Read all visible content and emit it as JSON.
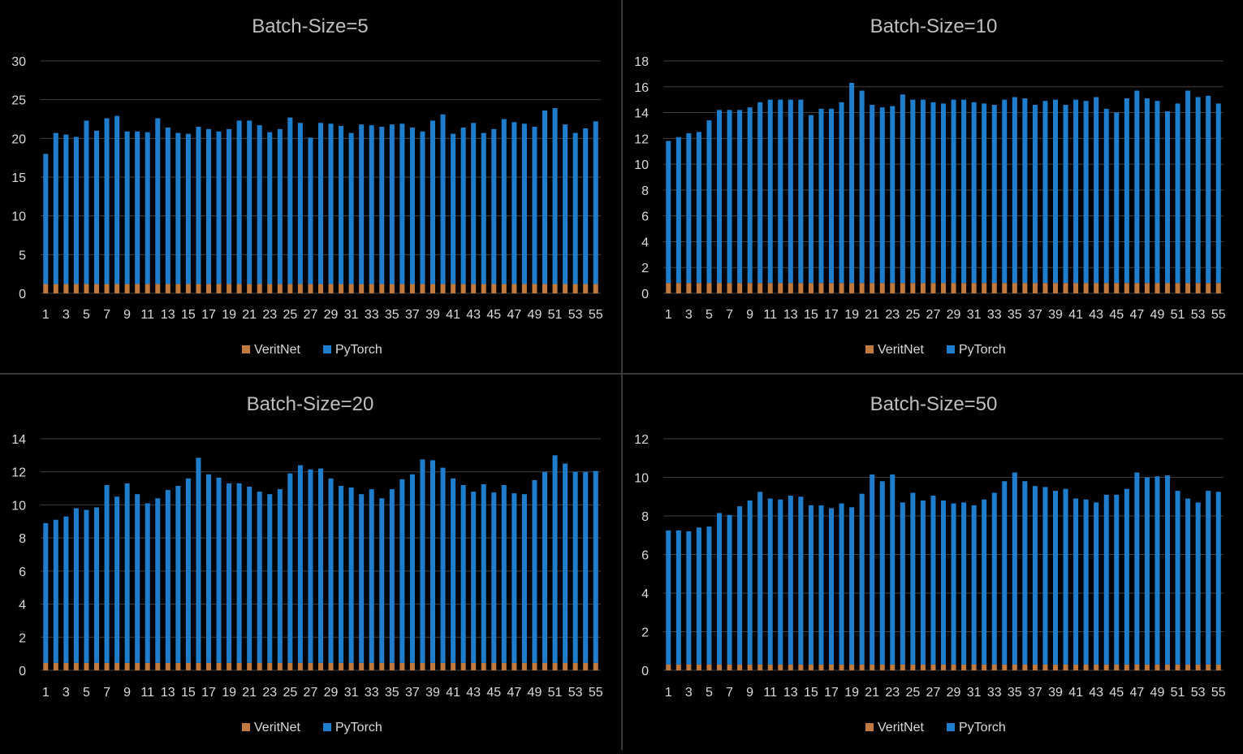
{
  "colors": {
    "veritnet": "#c07a3e",
    "pytorch": "#1f7ecb",
    "background": "#000000",
    "grid": "#404040",
    "text": "#d9d9d9",
    "title": "#bfbfbf"
  },
  "legend": [
    "VeritNet",
    "PyTorch"
  ],
  "chart_data": [
    {
      "type": "bar",
      "stacked": true,
      "title": "Batch-Size=5",
      "ylim": [
        0,
        30
      ],
      "yticks": [
        0,
        5,
        10,
        15,
        20,
        25,
        30
      ],
      "x": [
        1,
        2,
        3,
        4,
        5,
        6,
        7,
        8,
        9,
        10,
        11,
        12,
        13,
        14,
        15,
        16,
        17,
        18,
        19,
        20,
        21,
        22,
        23,
        24,
        25,
        26,
        27,
        28,
        29,
        30,
        31,
        32,
        33,
        34,
        35,
        36,
        37,
        38,
        39,
        40,
        41,
        42,
        43,
        44,
        45,
        46,
        47,
        48,
        49,
        50,
        51,
        52,
        53,
        54,
        55
      ],
      "xtick_labels": [
        "1",
        "3",
        "5",
        "7",
        "9",
        "11",
        "13",
        "15",
        "17",
        "19",
        "21",
        "23",
        "25",
        "27",
        "29",
        "31",
        "33",
        "35",
        "37",
        "39",
        "41",
        "43",
        "45",
        "47",
        "49",
        "51",
        "53",
        "55"
      ],
      "legend_position": "bottom",
      "grid": true,
      "series": [
        {
          "name": "VeritNet",
          "values": [
            1.2,
            1.2,
            1.2,
            1.2,
            1.2,
            1.2,
            1.2,
            1.2,
            1.2,
            1.2,
            1.2,
            1.2,
            1.2,
            1.2,
            1.2,
            1.2,
            1.2,
            1.2,
            1.2,
            1.2,
            1.2,
            1.2,
            1.2,
            1.2,
            1.2,
            1.2,
            1.2,
            1.2,
            1.2,
            1.2,
            1.2,
            1.2,
            1.2,
            1.2,
            1.2,
            1.2,
            1.2,
            1.2,
            1.2,
            1.2,
            1.2,
            1.2,
            1.2,
            1.2,
            1.2,
            1.2,
            1.2,
            1.2,
            1.2,
            1.2,
            1.2,
            1.2,
            1.2,
            1.2,
            1.2
          ]
        },
        {
          "name": "PyTorch",
          "values": [
            16.8,
            19.5,
            19.3,
            19.0,
            21.1,
            19.8,
            21.4,
            21.7,
            19.7,
            19.7,
            19.6,
            21.4,
            20.2,
            19.5,
            19.4,
            20.3,
            20.0,
            19.7,
            20.0,
            21.1,
            21.1,
            20.5,
            19.6,
            20.0,
            21.5,
            20.8,
            18.9,
            20.8,
            20.7,
            20.4,
            19.5,
            20.6,
            20.5,
            20.3,
            20.6,
            20.7,
            20.2,
            19.7,
            21.1,
            21.9,
            19.4,
            20.2,
            20.8,
            19.5,
            20.0,
            21.3,
            20.9,
            20.7,
            20.3,
            22.4,
            22.7,
            20.6,
            19.5,
            20.1,
            21.0
          ]
        }
      ]
    },
    {
      "type": "bar",
      "stacked": true,
      "title": "Batch-Size=10",
      "ylim": [
        0,
        18
      ],
      "yticks": [
        0,
        2,
        4,
        6,
        8,
        10,
        12,
        14,
        16,
        18
      ],
      "x": [
        1,
        2,
        3,
        4,
        5,
        6,
        7,
        8,
        9,
        10,
        11,
        12,
        13,
        14,
        15,
        16,
        17,
        18,
        19,
        20,
        21,
        22,
        23,
        24,
        25,
        26,
        27,
        28,
        29,
        30,
        31,
        32,
        33,
        34,
        35,
        36,
        37,
        38,
        39,
        40,
        41,
        42,
        43,
        44,
        45,
        46,
        47,
        48,
        49,
        50,
        51,
        52,
        53,
        54,
        55
      ],
      "xtick_labels": [
        "1",
        "3",
        "5",
        "7",
        "9",
        "11",
        "13",
        "15",
        "17",
        "19",
        "21",
        "23",
        "25",
        "27",
        "29",
        "31",
        "33",
        "35",
        "37",
        "39",
        "41",
        "43",
        "45",
        "47",
        "49",
        "51",
        "53",
        "55"
      ],
      "legend_position": "bottom",
      "grid": true,
      "series": [
        {
          "name": "VeritNet",
          "values": [
            0.8,
            0.8,
            0.8,
            0.8,
            0.8,
            0.8,
            0.8,
            0.8,
            0.8,
            0.8,
            0.8,
            0.8,
            0.8,
            0.8,
            0.8,
            0.8,
            0.8,
            0.8,
            0.8,
            0.8,
            0.8,
            0.8,
            0.8,
            0.8,
            0.8,
            0.8,
            0.8,
            0.8,
            0.8,
            0.8,
            0.8,
            0.8,
            0.8,
            0.8,
            0.8,
            0.8,
            0.8,
            0.8,
            0.8,
            0.8,
            0.8,
            0.8,
            0.8,
            0.8,
            0.8,
            0.8,
            0.8,
            0.8,
            0.8,
            0.8,
            0.8,
            0.8,
            0.8,
            0.8,
            0.8
          ]
        },
        {
          "name": "PyTorch",
          "values": [
            11.0,
            11.3,
            11.6,
            11.7,
            12.6,
            13.4,
            13.4,
            13.4,
            13.6,
            14.0,
            14.2,
            14.2,
            14.2,
            14.2,
            13.0,
            13.5,
            13.5,
            14.0,
            15.5,
            14.9,
            13.8,
            13.6,
            13.7,
            14.6,
            14.2,
            14.2,
            14.0,
            13.9,
            14.2,
            14.2,
            14.0,
            13.9,
            13.8,
            14.2,
            14.4,
            14.3,
            13.8,
            14.1,
            14.2,
            13.8,
            14.2,
            14.1,
            14.4,
            13.5,
            13.2,
            14.3,
            14.9,
            14.3,
            14.1,
            13.3,
            13.9,
            14.9,
            14.4,
            14.5,
            13.9
          ]
        }
      ]
    },
    {
      "type": "bar",
      "stacked": true,
      "title": "Batch-Size=20",
      "ylim": [
        0,
        14
      ],
      "yticks": [
        0,
        2,
        4,
        6,
        8,
        10,
        12,
        14
      ],
      "x": [
        1,
        2,
        3,
        4,
        5,
        6,
        7,
        8,
        9,
        10,
        11,
        12,
        13,
        14,
        15,
        16,
        17,
        18,
        19,
        20,
        21,
        22,
        23,
        24,
        25,
        26,
        27,
        28,
        29,
        30,
        31,
        32,
        33,
        34,
        35,
        36,
        37,
        38,
        39,
        40,
        41,
        42,
        43,
        44,
        45,
        46,
        47,
        48,
        49,
        50,
        51,
        52,
        53,
        54,
        55
      ],
      "xtick_labels": [
        "1",
        "3",
        "5",
        "7",
        "9",
        "11",
        "13",
        "15",
        "17",
        "19",
        "21",
        "23",
        "25",
        "27",
        "29",
        "31",
        "33",
        "35",
        "37",
        "39",
        "41",
        "43",
        "45",
        "47",
        "49",
        "51",
        "53",
        "55"
      ],
      "legend_position": "bottom",
      "grid": true,
      "series": [
        {
          "name": "VeritNet",
          "values": [
            0.45,
            0.45,
            0.45,
            0.45,
            0.45,
            0.45,
            0.45,
            0.45,
            0.45,
            0.45,
            0.45,
            0.45,
            0.45,
            0.45,
            0.45,
            0.45,
            0.45,
            0.45,
            0.45,
            0.45,
            0.45,
            0.45,
            0.45,
            0.45,
            0.45,
            0.45,
            0.45,
            0.45,
            0.45,
            0.45,
            0.45,
            0.45,
            0.45,
            0.45,
            0.45,
            0.45,
            0.45,
            0.45,
            0.45,
            0.45,
            0.45,
            0.45,
            0.45,
            0.45,
            0.45,
            0.45,
            0.45,
            0.45,
            0.45,
            0.45,
            0.45,
            0.45,
            0.45,
            0.45,
            0.45
          ]
        },
        {
          "name": "PyTorch",
          "values": [
            8.45,
            8.65,
            8.85,
            9.35,
            9.25,
            9.4,
            10.75,
            10.05,
            10.85,
            10.2,
            9.65,
            9.95,
            10.45,
            10.7,
            11.15,
            12.4,
            11.4,
            11.2,
            10.85,
            10.85,
            10.65,
            10.35,
            10.2,
            10.5,
            11.45,
            11.95,
            11.7,
            11.75,
            11.15,
            10.7,
            10.6,
            10.2,
            10.5,
            9.95,
            10.5,
            11.1,
            11.4,
            12.3,
            12.25,
            11.8,
            11.15,
            10.75,
            10.35,
            10.8,
            10.3,
            10.75,
            10.25,
            10.2,
            11.05,
            11.55,
            12.55,
            12.05,
            11.55,
            11.55,
            11.6
          ]
        }
      ]
    },
    {
      "type": "bar",
      "stacked": true,
      "title": "Batch-Size=50",
      "ylim": [
        0,
        12
      ],
      "yticks": [
        0,
        2,
        4,
        6,
        8,
        10,
        12
      ],
      "x": [
        1,
        2,
        3,
        4,
        5,
        6,
        7,
        8,
        9,
        10,
        11,
        12,
        13,
        14,
        15,
        16,
        17,
        18,
        19,
        20,
        21,
        22,
        23,
        24,
        25,
        26,
        27,
        28,
        29,
        30,
        31,
        32,
        33,
        34,
        35,
        36,
        37,
        38,
        39,
        40,
        41,
        42,
        43,
        44,
        45,
        46,
        47,
        48,
        49,
        50,
        51,
        52,
        53,
        54,
        55
      ],
      "xtick_labels": [
        "1",
        "3",
        "5",
        "7",
        "9",
        "11",
        "13",
        "15",
        "17",
        "19",
        "21",
        "23",
        "25",
        "27",
        "29",
        "31",
        "33",
        "35",
        "37",
        "39",
        "41",
        "43",
        "45",
        "47",
        "49",
        "51",
        "53",
        "55"
      ],
      "legend_position": "bottom",
      "grid": true,
      "series": [
        {
          "name": "VeritNet",
          "values": [
            0.3,
            0.3,
            0.3,
            0.3,
            0.3,
            0.3,
            0.3,
            0.3,
            0.3,
            0.3,
            0.3,
            0.3,
            0.3,
            0.3,
            0.3,
            0.3,
            0.3,
            0.3,
            0.3,
            0.3,
            0.3,
            0.3,
            0.3,
            0.3,
            0.3,
            0.3,
            0.3,
            0.3,
            0.3,
            0.3,
            0.3,
            0.3,
            0.3,
            0.3,
            0.3,
            0.3,
            0.3,
            0.3,
            0.3,
            0.3,
            0.3,
            0.3,
            0.3,
            0.3,
            0.3,
            0.3,
            0.3,
            0.3,
            0.3,
            0.3,
            0.3,
            0.3,
            0.3,
            0.3,
            0.3
          ]
        },
        {
          "name": "PyTorch",
          "values": [
            6.95,
            6.95,
            6.9,
            7.1,
            7.15,
            7.85,
            7.75,
            8.2,
            8.5,
            8.95,
            8.6,
            8.55,
            8.75,
            8.7,
            8.25,
            8.25,
            8.1,
            8.35,
            8.15,
            8.85,
            9.85,
            9.5,
            9.85,
            8.4,
            8.9,
            8.5,
            8.75,
            8.5,
            8.35,
            8.4,
            8.25,
            8.55,
            8.9,
            9.5,
            9.95,
            9.5,
            9.25,
            9.2,
            9.0,
            9.1,
            8.6,
            8.55,
            8.4,
            8.8,
            8.8,
            9.1,
            9.95,
            9.7,
            9.75,
            9.8,
            9.0,
            8.6,
            8.4,
            9.0,
            8.95
          ]
        }
      ]
    }
  ]
}
